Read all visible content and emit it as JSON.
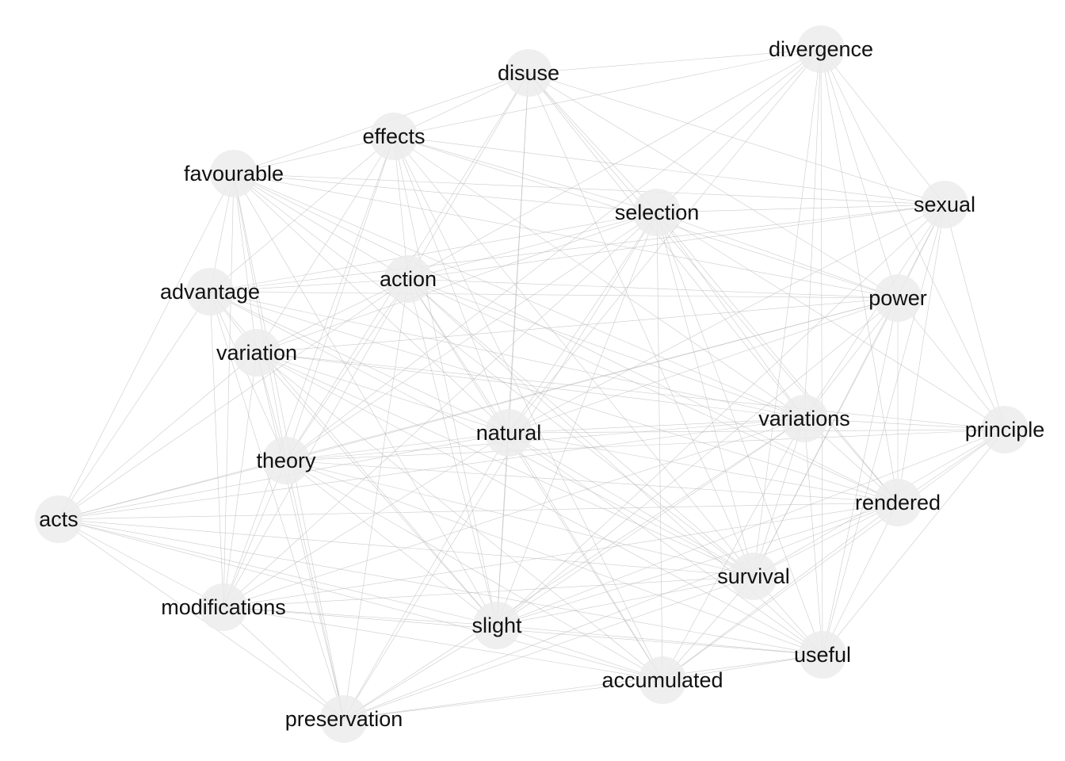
{
  "diagram": {
    "type": "network",
    "nodes": [
      {
        "id": "divergence",
        "label": "divergence"
      },
      {
        "id": "disuse",
        "label": "disuse"
      },
      {
        "id": "effects",
        "label": "effects"
      },
      {
        "id": "favourable",
        "label": "favourable"
      },
      {
        "id": "selection",
        "label": "selection"
      },
      {
        "id": "sexual",
        "label": "sexual"
      },
      {
        "id": "advantage",
        "label": "advantage"
      },
      {
        "id": "action",
        "label": "action"
      },
      {
        "id": "power",
        "label": "power"
      },
      {
        "id": "variation",
        "label": "variation"
      },
      {
        "id": "variations",
        "label": "variations"
      },
      {
        "id": "natural",
        "label": "natural"
      },
      {
        "id": "principle",
        "label": "principle"
      },
      {
        "id": "theory",
        "label": "theory"
      },
      {
        "id": "acts",
        "label": "acts"
      },
      {
        "id": "rendered",
        "label": "rendered"
      },
      {
        "id": "survival",
        "label": "survival"
      },
      {
        "id": "modifications",
        "label": "modifications"
      },
      {
        "id": "slight",
        "label": "slight"
      },
      {
        "id": "useful",
        "label": "useful"
      },
      {
        "id": "accumulated",
        "label": "accumulated"
      },
      {
        "id": "preservation",
        "label": "preservation"
      }
    ],
    "edges": [
      [
        "divergence",
        "disuse"
      ],
      [
        "divergence",
        "effects"
      ],
      [
        "divergence",
        "selection"
      ],
      [
        "divergence",
        "sexual"
      ],
      [
        "divergence",
        "action"
      ],
      [
        "divergence",
        "power"
      ],
      [
        "divergence",
        "variations"
      ],
      [
        "divergence",
        "principle"
      ],
      [
        "divergence",
        "theory"
      ],
      [
        "divergence",
        "survival"
      ],
      [
        "divergence",
        "useful"
      ],
      [
        "divergence",
        "rendered"
      ],
      [
        "divergence",
        "natural"
      ],
      [
        "disuse",
        "effects"
      ],
      [
        "disuse",
        "favourable"
      ],
      [
        "disuse",
        "selection"
      ],
      [
        "disuse",
        "action"
      ],
      [
        "disuse",
        "natural"
      ],
      [
        "disuse",
        "theory"
      ],
      [
        "disuse",
        "variations"
      ],
      [
        "disuse",
        "survival"
      ],
      [
        "disuse",
        "power"
      ],
      [
        "disuse",
        "rendered"
      ],
      [
        "disuse",
        "slight"
      ],
      [
        "disuse",
        "sexual"
      ],
      [
        "effects",
        "favourable"
      ],
      [
        "effects",
        "selection"
      ],
      [
        "effects",
        "advantage"
      ],
      [
        "effects",
        "action"
      ],
      [
        "effects",
        "variation"
      ],
      [
        "effects",
        "natural"
      ],
      [
        "effects",
        "theory"
      ],
      [
        "effects",
        "slight"
      ],
      [
        "effects",
        "accumulated"
      ],
      [
        "effects",
        "survival"
      ],
      [
        "effects",
        "sexual"
      ],
      [
        "effects",
        "power"
      ],
      [
        "effects",
        "variations"
      ],
      [
        "effects",
        "modifications"
      ],
      [
        "favourable",
        "advantage"
      ],
      [
        "favourable",
        "variation"
      ],
      [
        "favourable",
        "theory"
      ],
      [
        "favourable",
        "acts"
      ],
      [
        "favourable",
        "modifications"
      ],
      [
        "favourable",
        "selection"
      ],
      [
        "favourable",
        "action"
      ],
      [
        "favourable",
        "variations"
      ],
      [
        "favourable",
        "survival"
      ],
      [
        "favourable",
        "natural"
      ],
      [
        "favourable",
        "preservation"
      ],
      [
        "favourable",
        "sexual"
      ],
      [
        "favourable",
        "rendered"
      ],
      [
        "favourable",
        "slight"
      ],
      [
        "favourable",
        "power"
      ],
      [
        "selection",
        "sexual"
      ],
      [
        "selection",
        "power"
      ],
      [
        "selection",
        "action"
      ],
      [
        "selection",
        "advantage"
      ],
      [
        "selection",
        "variation"
      ],
      [
        "selection",
        "natural"
      ],
      [
        "selection",
        "variations"
      ],
      [
        "selection",
        "theory"
      ],
      [
        "selection",
        "survival"
      ],
      [
        "selection",
        "accumulated"
      ],
      [
        "selection",
        "useful"
      ],
      [
        "selection",
        "rendered"
      ],
      [
        "selection",
        "preservation"
      ],
      [
        "selection",
        "slight"
      ],
      [
        "selection",
        "principle"
      ],
      [
        "selection",
        "modifications"
      ],
      [
        "sexual",
        "power"
      ],
      [
        "sexual",
        "action"
      ],
      [
        "sexual",
        "advantage"
      ],
      [
        "sexual",
        "variations"
      ],
      [
        "sexual",
        "survival"
      ],
      [
        "sexual",
        "rendered"
      ],
      [
        "sexual",
        "principle"
      ],
      [
        "sexual",
        "useful"
      ],
      [
        "sexual",
        "natural"
      ],
      [
        "sexual",
        "slight"
      ],
      [
        "advantage",
        "action"
      ],
      [
        "advantage",
        "variation"
      ],
      [
        "advantage",
        "theory"
      ],
      [
        "advantage",
        "acts"
      ],
      [
        "advantage",
        "modifications"
      ],
      [
        "advantage",
        "natural"
      ],
      [
        "advantage",
        "power"
      ],
      [
        "advantage",
        "variations"
      ],
      [
        "advantage",
        "survival"
      ],
      [
        "advantage",
        "slight"
      ],
      [
        "advantage",
        "preservation"
      ],
      [
        "advantage",
        "rendered"
      ],
      [
        "action",
        "variation"
      ],
      [
        "action",
        "natural"
      ],
      [
        "action",
        "theory"
      ],
      [
        "action",
        "power"
      ],
      [
        "action",
        "variations"
      ],
      [
        "action",
        "slight"
      ],
      [
        "action",
        "accumulated"
      ],
      [
        "action",
        "acts"
      ],
      [
        "action",
        "modifications"
      ],
      [
        "action",
        "preservation"
      ],
      [
        "action",
        "survival"
      ],
      [
        "action",
        "rendered"
      ],
      [
        "action",
        "useful"
      ],
      [
        "power",
        "variations"
      ],
      [
        "power",
        "principle"
      ],
      [
        "power",
        "rendered"
      ],
      [
        "power",
        "survival"
      ],
      [
        "power",
        "useful"
      ],
      [
        "power",
        "natural"
      ],
      [
        "power",
        "theory"
      ],
      [
        "power",
        "variation"
      ],
      [
        "power",
        "slight"
      ],
      [
        "power",
        "acts"
      ],
      [
        "variation",
        "theory"
      ],
      [
        "variation",
        "natural"
      ],
      [
        "variation",
        "variations"
      ],
      [
        "variation",
        "acts"
      ],
      [
        "variation",
        "modifications"
      ],
      [
        "variation",
        "slight"
      ],
      [
        "variation",
        "preservation"
      ],
      [
        "variation",
        "survival"
      ],
      [
        "variation",
        "accumulated"
      ],
      [
        "variation",
        "principle"
      ],
      [
        "variation",
        "useful"
      ],
      [
        "variations",
        "natural"
      ],
      [
        "variations",
        "principle"
      ],
      [
        "variations",
        "rendered"
      ],
      [
        "variations",
        "survival"
      ],
      [
        "variations",
        "useful"
      ],
      [
        "variations",
        "slight"
      ],
      [
        "variations",
        "accumulated"
      ],
      [
        "variations",
        "theory"
      ],
      [
        "variations",
        "preservation"
      ],
      [
        "variations",
        "acts"
      ],
      [
        "variations",
        "modifications"
      ],
      [
        "natural",
        "theory"
      ],
      [
        "natural",
        "slight"
      ],
      [
        "natural",
        "survival"
      ],
      [
        "natural",
        "accumulated"
      ],
      [
        "natural",
        "preservation"
      ],
      [
        "natural",
        "principle"
      ],
      [
        "natural",
        "rendered"
      ],
      [
        "natural",
        "useful"
      ],
      [
        "natural",
        "modifications"
      ],
      [
        "natural",
        "acts"
      ],
      [
        "principle",
        "rendered"
      ],
      [
        "principle",
        "useful"
      ],
      [
        "principle",
        "survival"
      ],
      [
        "principle",
        "theory"
      ],
      [
        "principle",
        "accumulated"
      ],
      [
        "principle",
        "slight"
      ],
      [
        "theory",
        "acts"
      ],
      [
        "theory",
        "modifications"
      ],
      [
        "theory",
        "preservation"
      ],
      [
        "theory",
        "slight"
      ],
      [
        "theory",
        "accumulated"
      ],
      [
        "theory",
        "survival"
      ],
      [
        "theory",
        "rendered"
      ],
      [
        "theory",
        "useful"
      ],
      [
        "acts",
        "modifications"
      ],
      [
        "acts",
        "slight"
      ],
      [
        "acts",
        "preservation"
      ],
      [
        "acts",
        "survival"
      ],
      [
        "acts",
        "accumulated"
      ],
      [
        "acts",
        "rendered"
      ],
      [
        "acts",
        "useful"
      ],
      [
        "rendered",
        "survival"
      ],
      [
        "rendered",
        "useful"
      ],
      [
        "rendered",
        "accumulated"
      ],
      [
        "rendered",
        "slight"
      ],
      [
        "rendered",
        "preservation"
      ],
      [
        "rendered",
        "modifications"
      ],
      [
        "survival",
        "useful"
      ],
      [
        "survival",
        "accumulated"
      ],
      [
        "survival",
        "slight"
      ],
      [
        "survival",
        "preservation"
      ],
      [
        "survival",
        "modifications"
      ],
      [
        "modifications",
        "slight"
      ],
      [
        "modifications",
        "preservation"
      ],
      [
        "modifications",
        "accumulated"
      ],
      [
        "modifications",
        "useful"
      ],
      [
        "slight",
        "accumulated"
      ],
      [
        "slight",
        "useful"
      ],
      [
        "slight",
        "preservation"
      ],
      [
        "useful",
        "accumulated"
      ],
      [
        "useful",
        "preservation"
      ],
      [
        "accumulated",
        "preservation"
      ]
    ]
  }
}
